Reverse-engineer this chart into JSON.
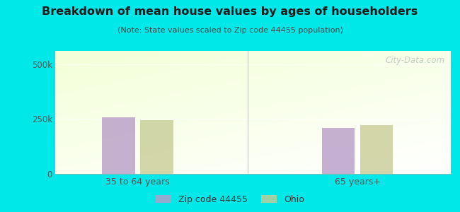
{
  "title": "Breakdown of mean house values by ages of householders",
  "subtitle": "(Note: State values scaled to Zip code 44455 population)",
  "categories": [
    "35 to 64 years",
    "65 years+"
  ],
  "series": [
    {
      "label": "Zip code 44455",
      "values": [
        258000,
        208000
      ],
      "color": "#b89cc8"
    },
    {
      "label": "Ohio",
      "values": [
        243000,
        222000
      ],
      "color": "#c8cc96"
    }
  ],
  "ylim": [
    0,
    560000
  ],
  "yticks": [
    0,
    250000,
    500000
  ],
  "ytick_labels": [
    "0",
    "250k",
    "500k"
  ],
  "background_outer": "#00e8e8",
  "bar_width": 0.3,
  "group_centers": [
    1.0,
    3.0
  ],
  "xlim": [
    0.25,
    3.85
  ],
  "watermark": "City-Data.com",
  "title_color": "#1a1a1a",
  "subtitle_color": "#444444",
  "tick_color": "#555555",
  "grid_color": "#ccddcc",
  "separator_color": "#999999"
}
